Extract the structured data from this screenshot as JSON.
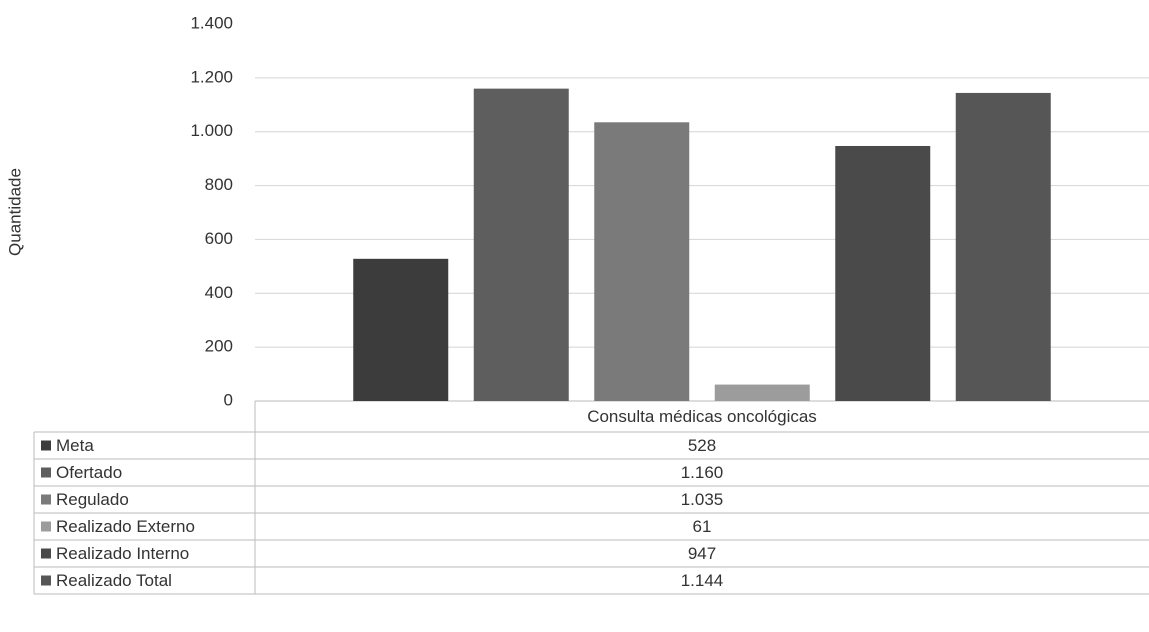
{
  "chart_data": {
    "type": "bar",
    "y_axis_label": "Quantidade",
    "categories": [
      "Consulta médicas oncológicas"
    ],
    "series": [
      {
        "name": "Meta",
        "color": "#3c3c3c",
        "values": [
          528
        ]
      },
      {
        "name": "Ofertado",
        "color": "#5e5e5e",
        "values": [
          1160
        ],
        "value_labels": [
          "1.160"
        ]
      },
      {
        "name": "Regulado",
        "color": "#7a7a7a",
        "values": [
          1035
        ],
        "value_labels": [
          "1.035"
        ]
      },
      {
        "name": "Realizado Externo",
        "color": "#9c9c9c",
        "values": [
          61
        ]
      },
      {
        "name": "Realizado Interno",
        "color": "#4a4a4a",
        "values": [
          947
        ]
      },
      {
        "name": "Realizado Total",
        "color": "#565656",
        "values": [
          1144
        ],
        "value_labels": [
          "1.144"
        ]
      }
    ],
    "ylim": [
      0,
      1400
    ],
    "yticks": [
      0,
      200,
      400,
      600,
      800,
      {
        "value": 1000,
        "label": "1.000"
      },
      {
        "value": 1200,
        "label": "1.200"
      },
      {
        "value": 1400,
        "label": "1.400"
      }
    ],
    "grid": true
  }
}
